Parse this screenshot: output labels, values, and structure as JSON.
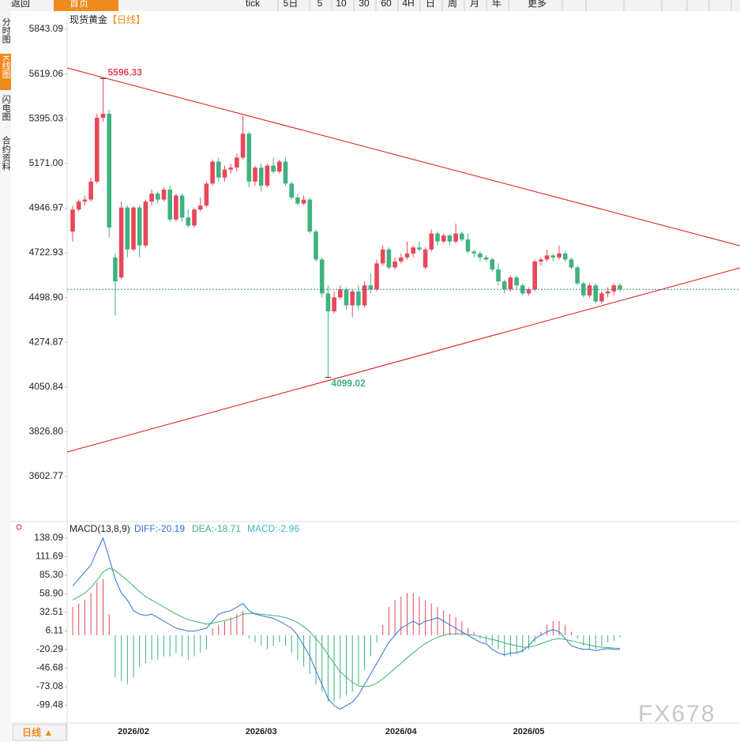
{
  "toolbar": [
    "返回",
    "首页",
    "tick",
    "5日",
    "5",
    "10",
    "30",
    "60",
    "4H",
    "日",
    "周",
    "月",
    "年",
    "更多"
  ],
  "sidebar": [
    "分时图",
    "K线图",
    "闪电图",
    "合约资料"
  ],
  "chart_data": [
    {
      "type": "candlestick",
      "title": "现货黄金",
      "subtitle": "【日线】",
      "categories": [
        null,
        null,
        null,
        null,
        null,
        null,
        null,
        null,
        null,
        null,
        "2026/02",
        null,
        null,
        null,
        null,
        null,
        null,
        null,
        null,
        null,
        null,
        null,
        null,
        null,
        null,
        null,
        null,
        null,
        null,
        null,
        null,
        "2026/03",
        null,
        null,
        null,
        null,
        null,
        null,
        null,
        null,
        null,
        null,
        null,
        null,
        null,
        null,
        null,
        null,
        null,
        null,
        null,
        null,
        null,
        null,
        "2026/04",
        null,
        null,
        null,
        null,
        null,
        null,
        null,
        null,
        null,
        null,
        null,
        null,
        null,
        null,
        null,
        null,
        null,
        null,
        null,
        null,
        "2026/05",
        null,
        null,
        null,
        null,
        null,
        null,
        null,
        null,
        null,
        null,
        null,
        null,
        null,
        null,
        null
      ],
      "open": [
        4830,
        4940,
        4980,
        4990,
        5080,
        5400,
        5420,
        4700,
        4600,
        4950,
        4740,
        4950,
        4760,
        4980,
        5020,
        4990,
        5040,
        4890,
        5010,
        4900,
        4860,
        4940,
        4960,
        5070,
        5180,
        5100,
        5140,
        5150,
        5200,
        5320,
        5080,
        5150,
        5060,
        5160,
        5130,
        5180,
        5070,
        5000,
        4970,
        4990,
        4830,
        4690,
        4520,
        4430,
        4500,
        4540,
        4460,
        4530,
        4460,
        4560,
        4540,
        4670,
        4740,
        4650,
        4680,
        4700,
        4720,
        4750,
        4650,
        4740,
        4820,
        4780,
        4810,
        4780,
        4820,
        4790,
        4730,
        4720,
        4700,
        4690,
        4640,
        4580,
        4540,
        4600,
        4560,
        4520,
        4540,
        4680,
        4690,
        4710,
        4700,
        4720,
        4690,
        4650,
        4570,
        4510,
        4560,
        4480,
        4520,
        4530,
        4560
      ],
      "high": [
        4960,
        4990,
        5010,
        5100,
        5420,
        5596.33,
        5440,
        4720,
        4980,
        4960,
        4960,
        4960,
        4990,
        5040,
        5030,
        5050,
        5060,
        5020,
        5020,
        4940,
        4950,
        5000,
        5080,
        5190,
        5200,
        5160,
        5170,
        5220,
        5410,
        5330,
        5160,
        5170,
        5170,
        5200,
        5190,
        5200,
        5080,
        5020,
        5010,
        5000,
        4840,
        4700,
        4560,
        4530,
        4560,
        4550,
        4540,
        4560,
        4580,
        4620,
        4690,
        4760,
        4750,
        4700,
        4720,
        4780,
        4760,
        4780,
        4750,
        4840,
        4830,
        4820,
        4820,
        4870,
        4830,
        4820,
        4740,
        4730,
        4710,
        4700,
        4670,
        4590,
        4610,
        4610,
        4570,
        4550,
        4690,
        4700,
        4740,
        4720,
        4760,
        4730,
        4700,
        4660,
        4580,
        4570,
        4570,
        4530,
        4550,
        4570,
        4570
      ],
      "low": [
        4780,
        4930,
        4960,
        4980,
        5070,
        5380,
        4800,
        4410,
        4590,
        4700,
        4730,
        4700,
        4750,
        4960,
        4970,
        4980,
        4880,
        4880,
        4880,
        4850,
        4850,
        4930,
        4950,
        5060,
        5080,
        5080,
        5120,
        5130,
        5190,
        5050,
        5060,
        5030,
        5050,
        5120,
        5120,
        5060,
        4990,
        4960,
        4960,
        4820,
        4680,
        4500,
        4099.02,
        4420,
        4490,
        4440,
        4400,
        4440,
        4450,
        4520,
        4530,
        4660,
        4640,
        4640,
        4670,
        4690,
        4700,
        4730,
        4640,
        4730,
        4760,
        4770,
        4760,
        4770,
        4780,
        4720,
        4700,
        4680,
        4680,
        4630,
        4560,
        4520,
        4530,
        4540,
        4510,
        4510,
        4530,
        4660,
        4680,
        4680,
        4690,
        4680,
        4640,
        4560,
        4500,
        4500,
        4470,
        4470,
        4500,
        4510,
        4530
      ],
      "close": [
        4940,
        4980,
        4990,
        5080,
        5400,
        5420,
        4850,
        4580,
        4950,
        4740,
        4950,
        4760,
        4980,
        5020,
        4990,
        5040,
        4890,
        5010,
        4900,
        4860,
        4940,
        4960,
        5070,
        5180,
        5100,
        5140,
        5150,
        5200,
        5320,
        5080,
        5150,
        5060,
        5160,
        5130,
        5180,
        5070,
        5000,
        4970,
        4990,
        4830,
        4690,
        4520,
        4430,
        4500,
        4540,
        4460,
        4530,
        4460,
        4560,
        4540,
        4670,
        4740,
        4650,
        4680,
        4700,
        4720,
        4750,
        4740,
        4740,
        4820,
        4780,
        4810,
        4780,
        4820,
        4790,
        4730,
        4720,
        4700,
        4690,
        4640,
        4580,
        4540,
        4600,
        4560,
        4520,
        4540,
        4680,
        4690,
        4710,
        4700,
        4720,
        4690,
        4650,
        4570,
        4510,
        4560,
        4480,
        4520,
        4530,
        4560,
        4540
      ],
      "ylim": [
        3377.3,
        5910.4
      ],
      "yticks": [
        5843.09,
        5619.06,
        5395.03,
        {
          "value": 5171,
          "label": "5171.00"
        },
        4946.97,
        4722.93,
        {
          "value": 4498.9,
          "label": "4498.90"
        },
        4274.87,
        4050.84,
        {
          "value": 3826.8,
          "label": "3826.80"
        },
        3602.77
      ],
      "up_color": "#e8475a",
      "down_color": "#3fb27f"
    },
    {
      "type": "macd",
      "legend": [
        "MACD(13,8,9)",
        "DIFF:-20.19",
        "DEA:-18.71",
        "MACD:-2.96"
      ],
      "series": [
        {
          "name": "DIFF",
          "color": "#2f6fd8",
          "values": [
            70,
            80,
            90,
            100,
            120,
            138,
            110,
            80,
            60,
            50,
            35,
            30,
            28,
            30,
            25,
            20,
            15,
            10,
            8,
            6,
            6,
            8,
            10,
            20,
            30,
            33,
            35,
            40,
            45,
            35,
            30,
            28,
            26,
            24,
            20,
            15,
            10,
            0,
            -15,
            -30,
            -50,
            -70,
            -90,
            -100,
            -105,
            -100,
            -95,
            -85,
            -70,
            -55,
            -40,
            -25,
            -10,
            0,
            10,
            15,
            20,
            15,
            20,
            22,
            25,
            20,
            15,
            10,
            5,
            0,
            -5,
            -10,
            -12,
            -20,
            -25,
            -28,
            -25,
            -25,
            -22,
            -15,
            -5,
            0,
            5,
            8,
            5,
            -5,
            -15,
            -18,
            -20,
            -20,
            -22,
            -20,
            -19,
            -20,
            -20.19
          ]
        },
        {
          "name": "DEA",
          "color": "#3cb371",
          "values": [
            50,
            55,
            60,
            68,
            78,
            90,
            95,
            92,
            85,
            78,
            70,
            62,
            55,
            50,
            45,
            40,
            35,
            30,
            26,
            22,
            20,
            18,
            16,
            17,
            19,
            21,
            23,
            26,
            30,
            31,
            31,
            30,
            29,
            28,
            27,
            25,
            22,
            18,
            12,
            5,
            -5,
            -15,
            -28,
            -40,
            -52,
            -60,
            -67,
            -72,
            -73,
            -72,
            -68,
            -62,
            -55,
            -47,
            -40,
            -32,
            -25,
            -18,
            -12,
            -7,
            -3,
            0,
            2,
            2,
            2,
            1,
            0,
            -2,
            -4,
            -6,
            -8,
            -11,
            -13,
            -15,
            -17,
            -17,
            -15,
            -12,
            -9,
            -6,
            -5,
            -6,
            -8,
            -10,
            -12,
            -14,
            -16,
            -17,
            -17.5,
            -18.2,
            -18.71
          ]
        },
        {
          "name": "MACD",
          "color": "#e8475a",
          "values": [
            40,
            45,
            50,
            60,
            75,
            80,
            30,
            -60,
            -65,
            -70,
            -60,
            -45,
            -40,
            -35,
            -35,
            -30,
            -30,
            -25,
            -30,
            -35,
            -30,
            -25,
            -20,
            10,
            15,
            20,
            25,
            30,
            35,
            -5,
            -10,
            -15,
            -20,
            -15,
            -10,
            -15,
            -25,
            -35,
            -45,
            -55,
            -70,
            -80,
            -95,
            -95,
            -90,
            -85,
            -80,
            -70,
            -50,
            -30,
            -10,
            15,
            40,
            50,
            55,
            60,
            60,
            55,
            50,
            45,
            40,
            35,
            30,
            25,
            20,
            10,
            5,
            -5,
            -10,
            -15,
            -20,
            -30,
            -30,
            -25,
            -25,
            -20,
            -10,
            5,
            15,
            20,
            20,
            15,
            5,
            -5,
            -15,
            -20,
            -20,
            -15,
            -10,
            -8,
            -2.96
          ]
        }
      ],
      "ylim": [
        -124.8,
        150.4
      ],
      "yticks": [
        138.09,
        111.69,
        {
          "value": 85.3,
          "label": "85.30"
        },
        {
          "value": 58.9,
          "label": "58.90"
        },
        32.51,
        6.11,
        -20.29,
        -46.68,
        -73.08,
        -99.48
      ]
    }
  ],
  "footer": {
    "period_button": "日线 ▲",
    "watermark": "FX678"
  }
}
